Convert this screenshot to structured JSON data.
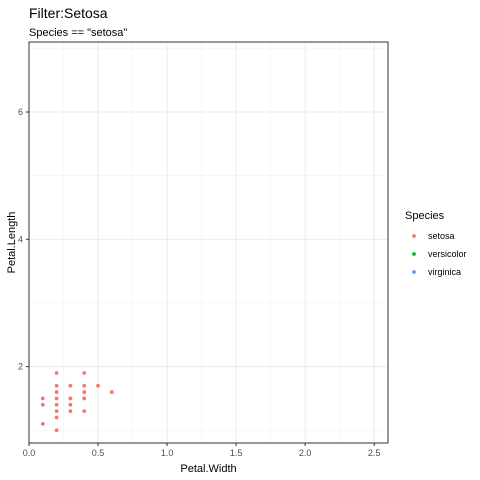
{
  "chart_data": {
    "type": "scatter",
    "title": "Filter:Setosa",
    "subtitle": "Species == \"setosa\"",
    "xlabel": "Petal.Width",
    "ylabel": "Petal.Length",
    "xlim": [
      0,
      2.6
    ],
    "ylim": [
      0.8,
      7.1
    ],
    "x_ticks": [
      0.0,
      0.5,
      1.0,
      1.5,
      2.0,
      2.5
    ],
    "x_tick_labels": [
      "0.0",
      "0.5",
      "1.0",
      "1.5",
      "2.0",
      "2.5"
    ],
    "y_ticks": [
      2,
      4,
      6
    ],
    "y_tick_labels": [
      "2",
      "4",
      "6"
    ],
    "grid": true,
    "legend": {
      "title": "Species",
      "position": "right",
      "entries": [
        {
          "label": "setosa",
          "color": "#F8766D"
        },
        {
          "label": "versicolor",
          "color": "#00BA38"
        },
        {
          "label": "virginica",
          "color": "#619CFF"
        }
      ]
    },
    "series": [
      {
        "name": "setosa",
        "color": "#F8766D",
        "points": [
          {
            "x": 0.1,
            "y": 1.1
          },
          {
            "x": 0.1,
            "y": 1.4
          },
          {
            "x": 0.1,
            "y": 1.5
          },
          {
            "x": 0.2,
            "y": 1.0
          },
          {
            "x": 0.2,
            "y": 1.2
          },
          {
            "x": 0.2,
            "y": 1.3
          },
          {
            "x": 0.2,
            "y": 1.4
          },
          {
            "x": 0.2,
            "y": 1.5
          },
          {
            "x": 0.2,
            "y": 1.6
          },
          {
            "x": 0.2,
            "y": 1.7
          },
          {
            "x": 0.2,
            "y": 1.9
          },
          {
            "x": 0.3,
            "y": 1.3
          },
          {
            "x": 0.3,
            "y": 1.4
          },
          {
            "x": 0.3,
            "y": 1.5
          },
          {
            "x": 0.3,
            "y": 1.7
          },
          {
            "x": 0.4,
            "y": 1.3
          },
          {
            "x": 0.4,
            "y": 1.5
          },
          {
            "x": 0.4,
            "y": 1.6
          },
          {
            "x": 0.4,
            "y": 1.7
          },
          {
            "x": 0.4,
            "y": 1.9
          },
          {
            "x": 0.5,
            "y": 1.7
          },
          {
            "x": 0.6,
            "y": 1.6
          }
        ]
      }
    ]
  }
}
